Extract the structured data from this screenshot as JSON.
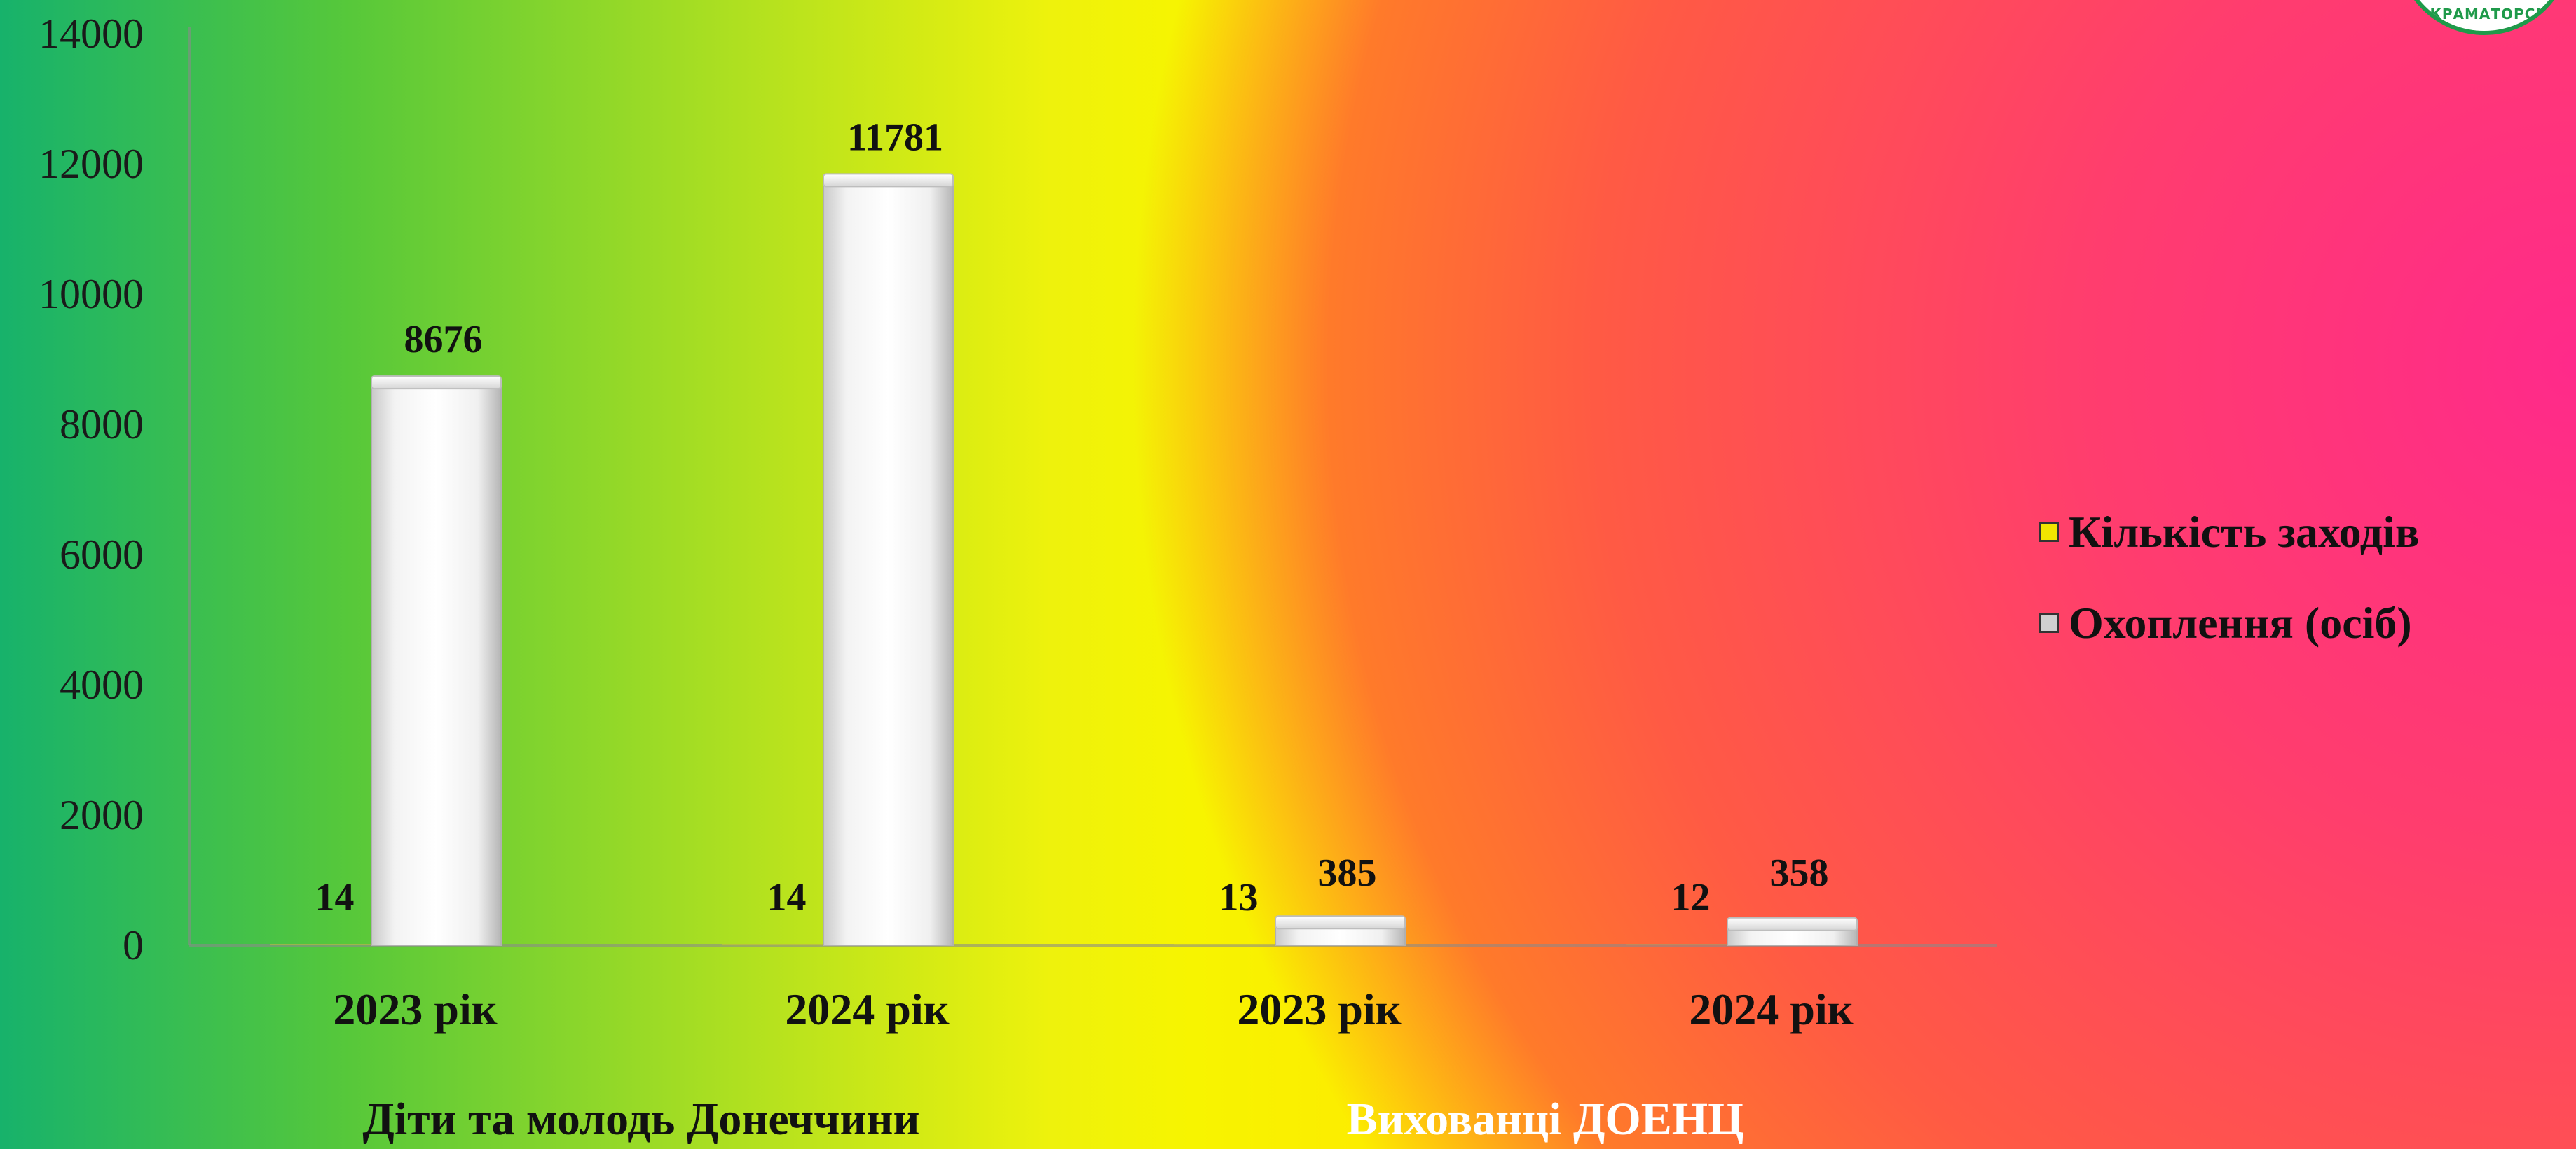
{
  "chart_data": {
    "type": "bar",
    "y_ticks": [
      "0",
      "2000",
      "4000",
      "6000",
      "8000",
      "10000",
      "12000",
      "14000"
    ],
    "ylim": [
      0,
      14000
    ],
    "categories": [
      "2023 рік",
      "2024 рік",
      "2023 рік",
      "2024 рік"
    ],
    "groups": [
      {
        "label": "Діти та молодь Донеччини",
        "categories": [
          0,
          1
        ]
      },
      {
        "label": "Вихованці ДОЕНЦ",
        "categories": [
          2,
          3
        ]
      }
    ],
    "series": [
      {
        "name": "Кількість заходів",
        "values": [
          14,
          14,
          13,
          12
        ],
        "labels": [
          "14",
          "14",
          "13",
          "12"
        ],
        "color": "#f2e600"
      },
      {
        "name": "Охоплення (осіб)",
        "values": [
          8676,
          11781,
          385,
          358
        ],
        "labels": [
          "8676",
          "11781",
          "385",
          "358"
        ],
        "color": "#e6e6e6"
      }
    ],
    "legend_position": "right",
    "grid": false
  },
  "logo": {
    "text": "М.КРАМАТОРСЬК"
  },
  "colors": {
    "bar_light": "#f7f7f7",
    "bar_shade": "#b8b8b8"
  }
}
